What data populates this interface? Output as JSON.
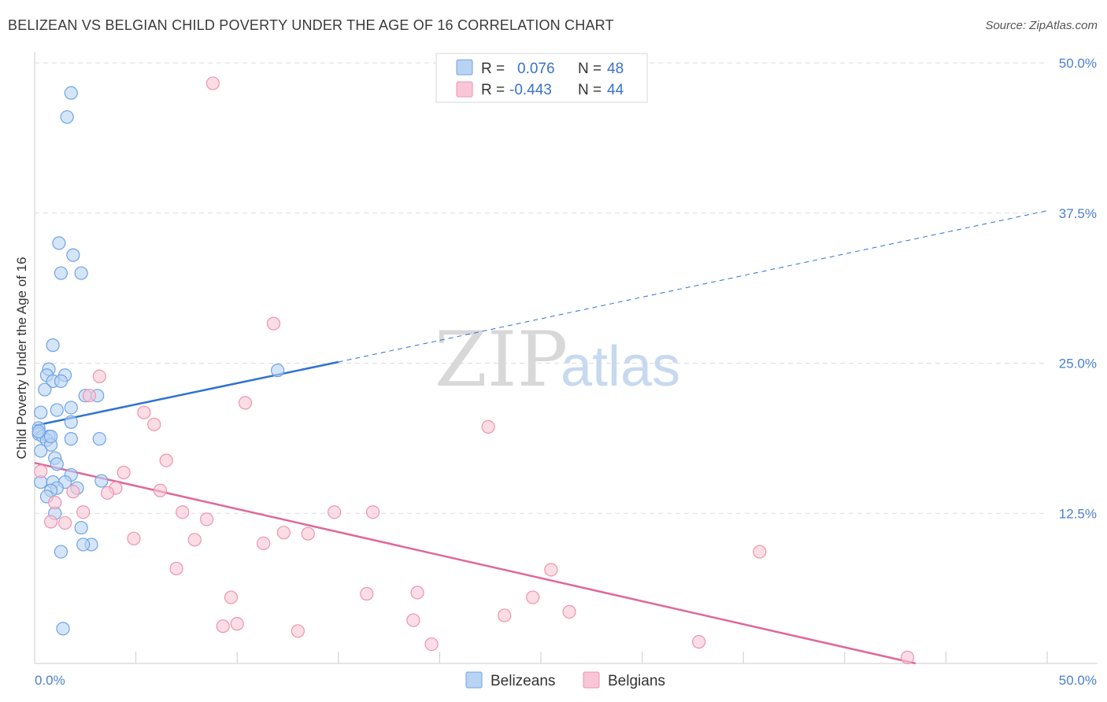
{
  "title": "BELIZEAN VS BELGIAN CHILD POVERTY UNDER THE AGE OF 16 CORRELATION CHART",
  "source": "Source: ZipAtlas.com",
  "watermark": {
    "part1": "ZIP",
    "part2": "atlas"
  },
  "legend": {
    "r_label": "R =",
    "n_label": "N =",
    "rows": [
      {
        "r": "0.076",
        "n": "48"
      },
      {
        "r": "-0.443",
        "n": "44"
      }
    ]
  },
  "chart_data": {
    "type": "scatter",
    "title": "BELIZEAN VS BELGIAN CHILD POVERTY UNDER THE AGE OF 16 CORRELATION CHART",
    "xlabel": "",
    "ylabel": "Child Poverty Under the Age of 16",
    "xlim": [
      0,
      50
    ],
    "ylim": [
      0,
      50
    ],
    "x_tick_labels": [
      "0.0%",
      "50.0%"
    ],
    "y_ticks": [
      12.5,
      25.0,
      37.5,
      50.0
    ],
    "y_tick_labels": [
      "12.5%",
      "25.0%",
      "37.5%",
      "50.0%"
    ],
    "grid": true,
    "legend_position": "top-center",
    "series": [
      {
        "name": "Belizeans",
        "color": "#6fa3e6",
        "fill": "#b9d3f3",
        "line_color": "#2f72d2",
        "trend": {
          "x0": 0,
          "y0": 19.8,
          "x1": 15,
          "y1": 25.1,
          "dashed_to_x": 50,
          "dashed_to_y": 37.7
        },
        "points": [
          [
            1.8,
            47.5
          ],
          [
            1.6,
            45.5
          ],
          [
            1.2,
            35.0
          ],
          [
            1.9,
            34.0
          ],
          [
            1.3,
            32.5
          ],
          [
            2.3,
            32.5
          ],
          [
            0.9,
            26.5
          ],
          [
            0.7,
            24.5
          ],
          [
            1.5,
            24.0
          ],
          [
            0.6,
            24.0
          ],
          [
            0.9,
            23.5
          ],
          [
            1.3,
            23.5
          ],
          [
            0.5,
            22.8
          ],
          [
            2.5,
            22.3
          ],
          [
            3.1,
            22.3
          ],
          [
            1.8,
            21.3
          ],
          [
            1.1,
            21.1
          ],
          [
            0.3,
            20.9
          ],
          [
            1.8,
            20.1
          ],
          [
            0.2,
            19.6
          ],
          [
            0.2,
            19.1
          ],
          [
            0.4,
            18.9
          ],
          [
            0.7,
            18.9
          ],
          [
            0.6,
            18.6
          ],
          [
            1.8,
            18.7
          ],
          [
            3.2,
            18.7
          ],
          [
            0.8,
            18.2
          ],
          [
            0.3,
            17.7
          ],
          [
            1.0,
            17.1
          ],
          [
            1.1,
            16.6
          ],
          [
            0.3,
            15.1
          ],
          [
            1.8,
            15.7
          ],
          [
            0.9,
            15.1
          ],
          [
            1.5,
            15.1
          ],
          [
            3.3,
            15.2
          ],
          [
            1.1,
            14.6
          ],
          [
            0.8,
            14.4
          ],
          [
            2.1,
            14.6
          ],
          [
            0.6,
            13.9
          ],
          [
            1.0,
            12.5
          ],
          [
            2.3,
            11.3
          ],
          [
            2.8,
            9.9
          ],
          [
            2.4,
            9.9
          ],
          [
            1.3,
            9.3
          ],
          [
            12.0,
            24.4
          ],
          [
            1.4,
            2.9
          ],
          [
            0.2,
            19.3
          ],
          [
            0.8,
            18.9
          ]
        ]
      },
      {
        "name": "Belgians",
        "color": "#ee93b0",
        "fill": "#f8c6d6",
        "line_color": "#e0679a",
        "trend": {
          "x0": 0,
          "y0": 16.7,
          "x1": 43.5,
          "y1": 0.0
        },
        "points": [
          [
            8.8,
            48.3
          ],
          [
            11.8,
            28.3
          ],
          [
            3.2,
            23.9
          ],
          [
            2.7,
            22.3
          ],
          [
            10.4,
            21.7
          ],
          [
            5.4,
            20.9
          ],
          [
            5.9,
            19.9
          ],
          [
            22.4,
            19.7
          ],
          [
            6.5,
            16.9
          ],
          [
            4.4,
            15.9
          ],
          [
            4.0,
            14.6
          ],
          [
            3.6,
            14.2
          ],
          [
            6.2,
            14.4
          ],
          [
            1.9,
            14.3
          ],
          [
            1.0,
            13.4
          ],
          [
            2.4,
            12.6
          ],
          [
            7.3,
            12.6
          ],
          [
            14.8,
            12.6
          ],
          [
            16.7,
            12.6
          ],
          [
            8.5,
            12.0
          ],
          [
            0.8,
            11.8
          ],
          [
            1.5,
            11.7
          ],
          [
            12.3,
            10.9
          ],
          [
            13.5,
            10.8
          ],
          [
            4.9,
            10.4
          ],
          [
            7.9,
            10.3
          ],
          [
            11.3,
            10.0
          ],
          [
            35.8,
            9.3
          ],
          [
            7.0,
            7.9
          ],
          [
            25.5,
            7.8
          ],
          [
            18.9,
            5.9
          ],
          [
            16.4,
            5.8
          ],
          [
            9.7,
            5.5
          ],
          [
            24.6,
            5.5
          ],
          [
            26.4,
            4.3
          ],
          [
            23.2,
            4.0
          ],
          [
            18.7,
            3.6
          ],
          [
            10.0,
            3.3
          ],
          [
            9.3,
            3.1
          ],
          [
            13.0,
            2.7
          ],
          [
            19.6,
            1.6
          ],
          [
            32.8,
            1.8
          ],
          [
            43.1,
            0.5
          ],
          [
            0.3,
            16.0
          ]
        ]
      }
    ]
  }
}
